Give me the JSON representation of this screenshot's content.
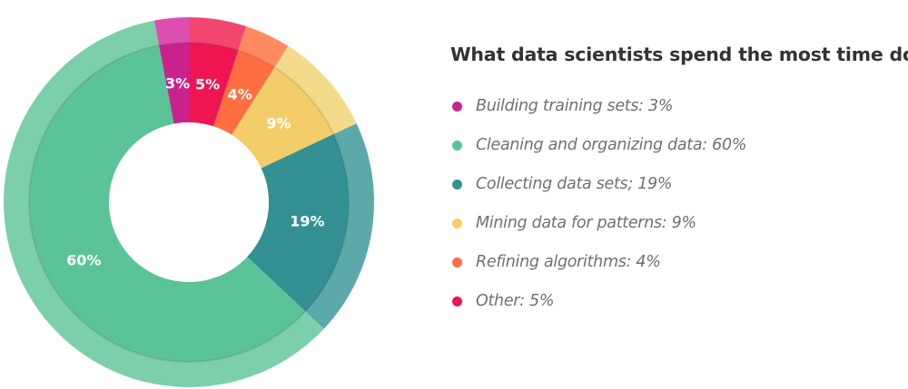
{
  "chart_data": {
    "type": "pie",
    "title": "What data scientists spend the most time doing",
    "slices": [
      {
        "label": "Building training sets",
        "value": 3,
        "value_label": "3%",
        "legend_text": "Building training sets: 3%",
        "color": "#c9228f",
        "outer_color": "#dc4fb1"
      },
      {
        "label": "Cleaning and organizing data",
        "value": 60,
        "value_label": "60%",
        "legend_text": "Cleaning and organizing data: 60%",
        "color": "#5bc398",
        "outer_color": "#7ccfab"
      },
      {
        "label": "Collecting data sets",
        "value": 19,
        "value_label": "19%",
        "legend_text": "Collecting data sets; 19%",
        "color": "#339193",
        "outer_color": "#5ca9aa"
      },
      {
        "label": "Mining data for patterns",
        "value": 9,
        "value_label": "9%",
        "legend_text": "Mining data for patterns: 9%",
        "color": "#f2cd6a",
        "outer_color": "#f3db8b"
      },
      {
        "label": "Refining algorithms",
        "value": 4,
        "value_label": "4%",
        "legend_text": "Refining algorithms: 4%",
        "color": "#ff6e40",
        "outer_color": "#ff8a62"
      },
      {
        "label": "Other",
        "value": 5,
        "value_label": "5%",
        "legend_text": "Other: 5%",
        "color": "#ef1552",
        "outer_color": "#f2466f"
      }
    ],
    "draw_order": [
      0,
      5,
      4,
      3,
      2,
      1
    ],
    "start": "12 o'clock",
    "direction": "clockwise",
    "donut": true,
    "legend_position": "right"
  }
}
